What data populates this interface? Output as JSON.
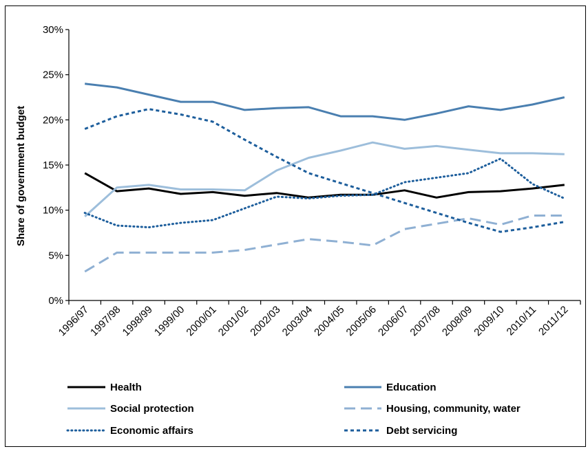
{
  "chart_data": {
    "type": "line",
    "xlabel": "",
    "ylabel": "Share of government budget",
    "ylim": [
      0,
      30
    ],
    "yticks": [
      "0%",
      "5%",
      "10%",
      "15%",
      "20%",
      "25%",
      "30%"
    ],
    "categories": [
      "1996/97",
      "1997/98",
      "1998/99",
      "1999/00",
      "2000/01",
      "2001/02",
      "2002/03",
      "2003/04",
      "2004/05",
      "2005/06",
      "2006/07",
      "2007/08",
      "2008/09",
      "2009/10",
      "2010/11",
      "2011/12"
    ],
    "grid": false,
    "legend_position": "bottom",
    "series": [
      {
        "name": "Health",
        "color": "#000000",
        "dash": "solid",
        "values": [
          14.1,
          12.1,
          12.4,
          11.8,
          12.0,
          11.6,
          11.9,
          11.4,
          11.7,
          11.7,
          12.2,
          11.4,
          12.0,
          12.1,
          12.4,
          12.8
        ]
      },
      {
        "name": "Education",
        "color": "#4a7fb0",
        "dash": "solid",
        "values": [
          24.0,
          23.6,
          22.8,
          22.0,
          22.0,
          21.1,
          21.3,
          21.4,
          20.4,
          20.4,
          20.0,
          20.7,
          21.5,
          21.1,
          21.7,
          22.5
        ]
      },
      {
        "name": "Social protection",
        "color": "#9dbedb",
        "dash": "solid",
        "values": [
          9.3,
          12.5,
          12.8,
          12.3,
          12.3,
          12.2,
          14.4,
          15.8,
          16.6,
          17.5,
          16.8,
          17.1,
          16.7,
          16.3,
          16.3,
          16.2
        ]
      },
      {
        "name": "Housing, community, water",
        "color": "#8fb0d3",
        "dash": "longdash",
        "values": [
          3.2,
          5.3,
          5.3,
          5.3,
          5.3,
          5.6,
          6.2,
          6.8,
          6.5,
          6.1,
          7.9,
          8.5,
          9.1,
          8.4,
          9.4,
          9.4
        ]
      },
      {
        "name": "Economic affairs",
        "color": "#1d5e9c",
        "dash": "dotted",
        "values": [
          9.7,
          8.3,
          8.1,
          8.6,
          8.9,
          10.2,
          11.5,
          11.3,
          11.6,
          11.7,
          13.1,
          13.6,
          14.1,
          15.7,
          12.9,
          11.3
        ]
      },
      {
        "name": "Debt servicing",
        "color": "#1d5e9c",
        "dash": "dashed",
        "values": [
          19.0,
          20.4,
          21.2,
          20.6,
          19.8,
          17.8,
          15.9,
          14.1,
          13.0,
          11.9,
          10.8,
          9.7,
          8.6,
          7.6,
          8.1,
          8.7
        ]
      }
    ]
  }
}
